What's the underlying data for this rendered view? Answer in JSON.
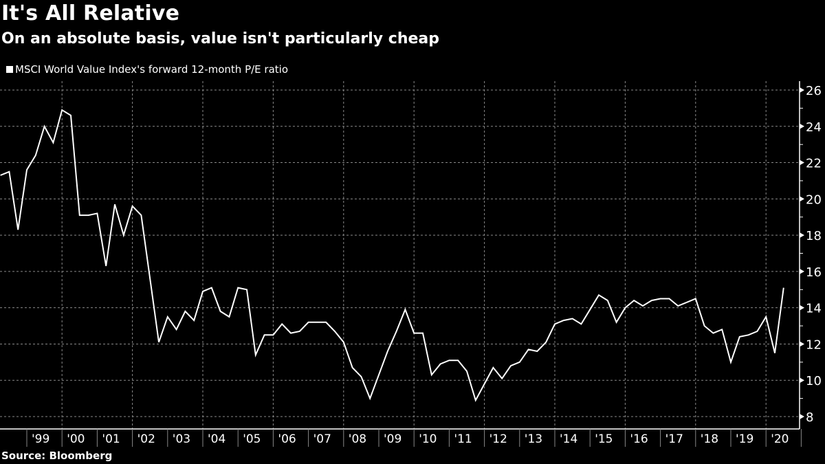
{
  "header": {
    "title": "It's All Relative",
    "subtitle": "On an absolute basis, value isn't particularly cheap"
  },
  "legend": {
    "label": "MSCI World Value Index's forward 12-month P/E ratio",
    "color": "#ffffff"
  },
  "footer": {
    "source": "Source: Bloomberg"
  },
  "chart_data": {
    "type": "line",
    "title": "It's All Relative",
    "subtitle": "On an absolute basis, value isn't particularly cheap",
    "xlabel": "",
    "ylabel": "",
    "ylim": [
      7.5,
      26.5
    ],
    "xlim": [
      1998.25,
      2020.96
    ],
    "grid": true,
    "legend_position": "top-left",
    "y_axis_side": "right",
    "y_ticks": [
      8,
      10,
      12,
      14,
      16,
      18,
      20,
      22,
      24,
      26
    ],
    "x_tick_labels": [
      "'99",
      "'00",
      "'01",
      "'02",
      "'03",
      "'04",
      "'05",
      "'06",
      "'07",
      "'08",
      "'09",
      "'10",
      "'11",
      "'12",
      "'13",
      "'14",
      "'15",
      "'16",
      "'17",
      "'18",
      "'19",
      "'20"
    ],
    "x_tick_years": [
      1999,
      2000,
      2001,
      2002,
      2003,
      2004,
      2005,
      2006,
      2007,
      2008,
      2009,
      2010,
      2011,
      2012,
      2013,
      2014,
      2015,
      2016,
      2017,
      2018,
      2019,
      2020
    ],
    "series": [
      {
        "name": "MSCI World Value Index's forward 12-month P/E ratio",
        "color": "#ffffff",
        "x_start": 1998.25,
        "x_step": 0.25,
        "values": [
          21.3,
          21.5,
          18.3,
          21.6,
          22.4,
          24.0,
          23.1,
          24.9,
          24.6,
          19.1,
          19.1,
          19.2,
          16.3,
          19.7,
          18.0,
          19.6,
          19.1,
          15.6,
          12.1,
          13.5,
          12.8,
          13.8,
          13.3,
          14.9,
          15.1,
          13.8,
          13.5,
          15.1,
          15.0,
          11.4,
          12.5,
          12.5,
          13.1,
          12.6,
          12.7,
          13.2,
          13.2,
          13.2,
          12.7,
          12.1,
          10.7,
          10.2,
          9.0,
          10.3,
          11.6,
          12.7,
          13.9,
          12.6,
          12.6,
          10.3,
          10.9,
          11.1,
          11.1,
          10.5,
          8.9,
          9.8,
          10.7,
          10.1,
          10.8,
          11.0,
          11.7,
          11.6,
          12.1,
          13.1,
          13.3,
          13.4,
          13.1,
          13.9,
          14.7,
          14.4,
          13.2,
          14.0,
          14.4,
          14.1,
          14.4,
          14.5,
          14.5,
          14.1,
          14.3,
          14.5,
          13.0,
          12.6,
          12.8,
          11.0,
          12.4,
          12.5,
          12.7,
          13.5,
          11.5,
          15.1
        ]
      }
    ]
  }
}
